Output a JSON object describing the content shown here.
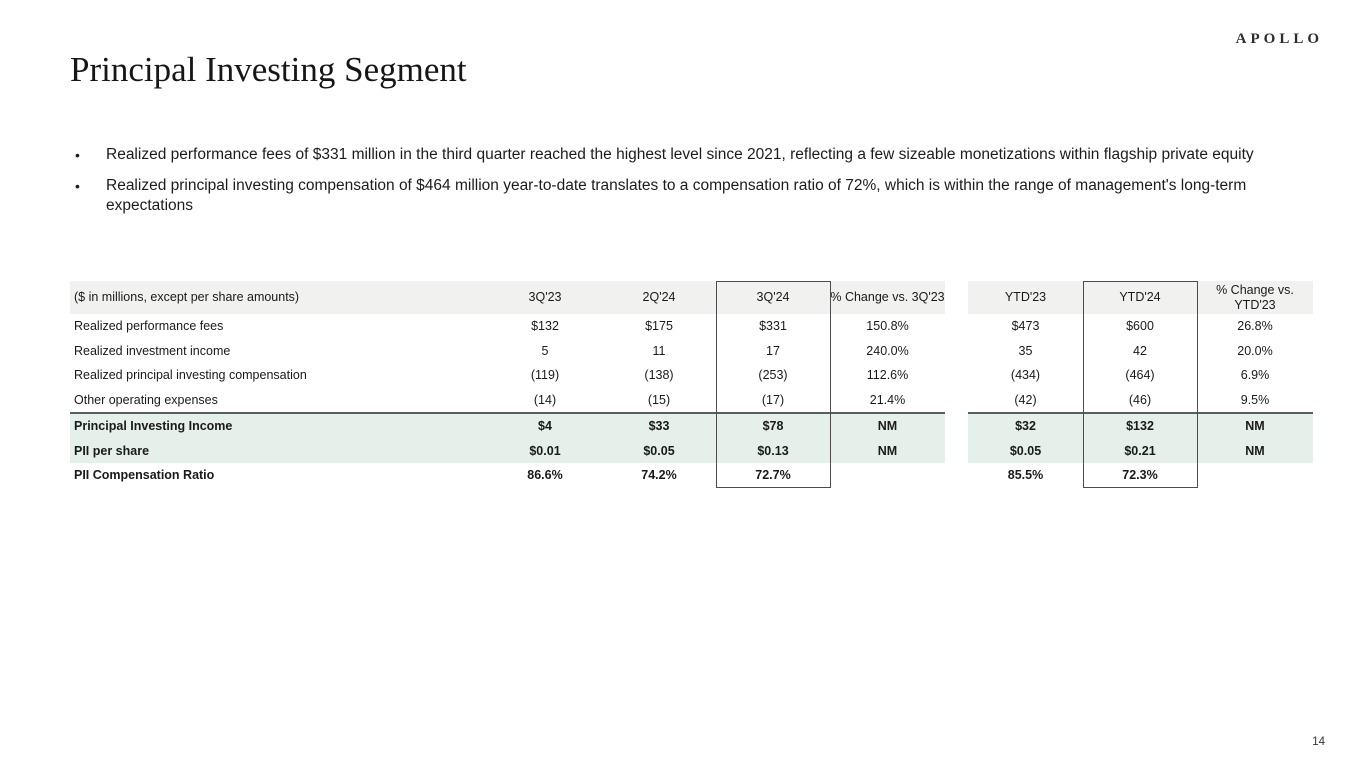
{
  "logo": "APOLLO",
  "title": "Principal Investing Segment",
  "bullets": [
    {
      "marker": "•",
      "text": "Realized performance fees of $331 million in the third quarter reached the highest level since 2021, reflecting a few sizeable monetizations within flagship private equity"
    },
    {
      "marker": "•",
      "text": "Realized principal investing compensation of $464 million year-to-date translates to a compensation ratio of 72%, which is within the range of management's long-term expectations"
    }
  ],
  "table": {
    "columns": [
      "($ in millions, except per share amounts)",
      "3Q'23",
      "2Q'24",
      "3Q'24",
      "% Change vs. 3Q'23",
      "YTD'23",
      "YTD'24",
      "% Change vs. YTD'23"
    ],
    "rows": [
      {
        "label": "Realized performance fees",
        "values": [
          "$132",
          "$175",
          "$331",
          "150.8%",
          "$473",
          "$600",
          "26.8%"
        ]
      },
      {
        "label": "Realized investment income",
        "values": [
          "5",
          "11",
          "17",
          "240.0%",
          "35",
          "42",
          "20.0%"
        ]
      },
      {
        "label": "Realized principal investing compensation",
        "values": [
          "(119)",
          "(138)",
          "(253)",
          "112.6%",
          "(434)",
          "(464)",
          "6.9%"
        ]
      },
      {
        "label": "Other operating expenses",
        "values": [
          "(14)",
          "(15)",
          "(17)",
          "21.4%",
          "(42)",
          "(46)",
          "9.5%"
        ]
      },
      {
        "label": "Principal Investing Income",
        "values": [
          "$4",
          "$33",
          "$78",
          "NM",
          "$32",
          "$132",
          "NM"
        ]
      },
      {
        "label": "PII per share",
        "values": [
          "$0.01",
          "$0.05",
          "$0.13",
          "NM",
          "$0.05",
          "$0.21",
          "NM"
        ]
      },
      {
        "label": "PII Compensation Ratio",
        "values": [
          "86.6%",
          "74.2%",
          "72.7%",
          "",
          "85.5%",
          "72.3%",
          ""
        ]
      }
    ]
  },
  "colors": {
    "header_row_bg": "#f1f1ef",
    "highlight_row_bg": "#e5f0ea",
    "box_border": "#4d4d4d",
    "divider_line": "#57605b"
  },
  "page_number": "14"
}
